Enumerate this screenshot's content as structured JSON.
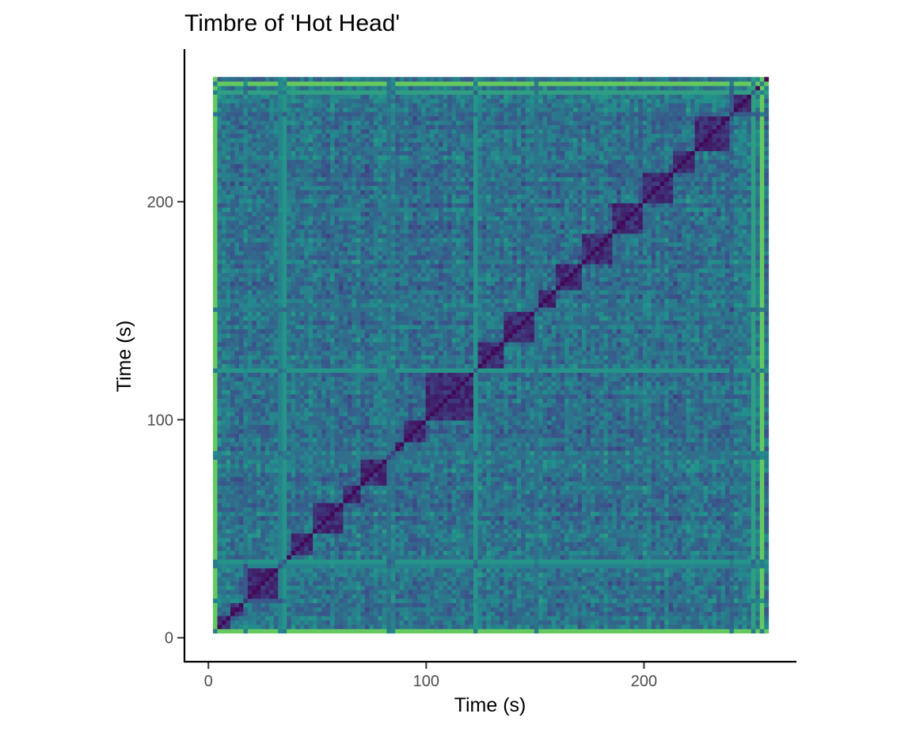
{
  "chart_data": {
    "type": "heatmap",
    "title": "Timbre of 'Hot Head'",
    "xlabel": "Time (s)",
    "ylabel": "Time (s)",
    "xlim": [
      -11,
      270
    ],
    "ylim": [
      -11,
      270
    ],
    "x_ticks": [
      0,
      100,
      200
    ],
    "y_ticks": [
      0,
      100,
      200
    ],
    "x_tick_labels": [
      "0",
      "100",
      "200"
    ],
    "y_tick_labels": [
      "0",
      "100",
      "200"
    ],
    "grid": false,
    "colormap": "viridis",
    "colormap_stops": [
      "#440154",
      "#3b528b",
      "#21918c",
      "#5ec962",
      "#fde725"
    ],
    "segment_boundaries_s": [
      2.1,
      10.2,
      16.5,
      34.5,
      37.0,
      47.5,
      62.0,
      70.0,
      84.5,
      90.0,
      99.5,
      122.0,
      135.0,
      150.0,
      160.0,
      172.0,
      186.0,
      199.5,
      214.0,
      223.5,
      240.0,
      252.0,
      255.0,
      257.2
    ],
    "notable_bright_frames_s": [
      {
        "time": 2.5,
        "intensity": 0.95
      },
      {
        "time": 17.5,
        "intensity": 0.35
      },
      {
        "time": 34.0,
        "intensity": 0.55
      },
      {
        "time": 35.5,
        "intensity": 0.65
      },
      {
        "time": 84.0,
        "intensity": 0.45
      },
      {
        "time": 122.0,
        "intensity": 0.65
      },
      {
        "time": 123.0,
        "intensity": 0.6
      },
      {
        "time": 150.0,
        "intensity": 0.45
      },
      {
        "time": 240.0,
        "intensity": 0.35
      },
      {
        "time": 251.0,
        "intensity": 0.7
      },
      {
        "time": 253.5,
        "intensity": 0.95
      }
    ]
  }
}
